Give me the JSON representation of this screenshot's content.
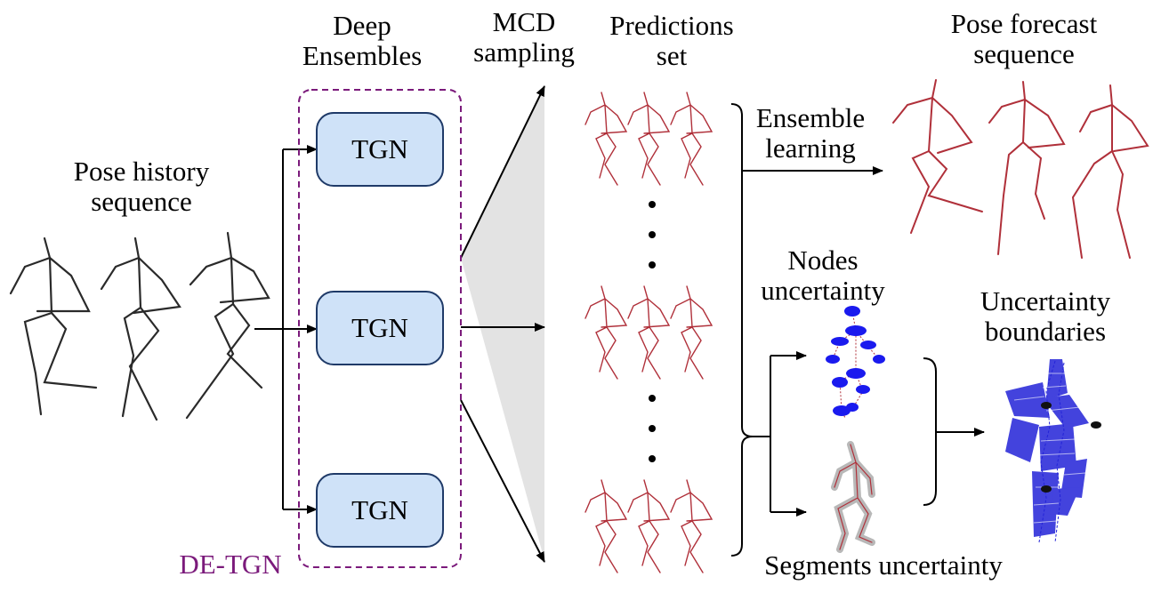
{
  "labels": {
    "history": [
      "Pose history",
      "sequence"
    ],
    "deep_ensembles": [
      "Deep",
      "Ensembles"
    ],
    "mcd": [
      "MCD",
      "sampling"
    ],
    "predictions": [
      "Predictions",
      "set"
    ],
    "forecast": [
      "Pose forecast",
      "sequence"
    ],
    "ensemble_learning": [
      "Ensemble",
      "learning"
    ],
    "nodes": [
      "Nodes",
      "uncertainty"
    ],
    "boundaries": [
      "Uncertainty",
      "boundaries"
    ],
    "segments": "Segments uncertainty",
    "detgn": "DE-TGN"
  },
  "models": [
    "TGN",
    "TGN",
    "TGN"
  ],
  "colors": {
    "history_pose": "#2a2a2a",
    "predicted_pose": "#b0303a",
    "ensemble_box": "#7b1a7b",
    "tgn_fill": "#cfe2f8",
    "tgn_border": "#1f3a68",
    "nodes_blue": "#1a1aee",
    "boundary_blue": "#2323d8",
    "sampling_fan": "#e3e3e3"
  },
  "icons": [
    "arrow-icon",
    "brace-icon",
    "skeleton-icon"
  ]
}
